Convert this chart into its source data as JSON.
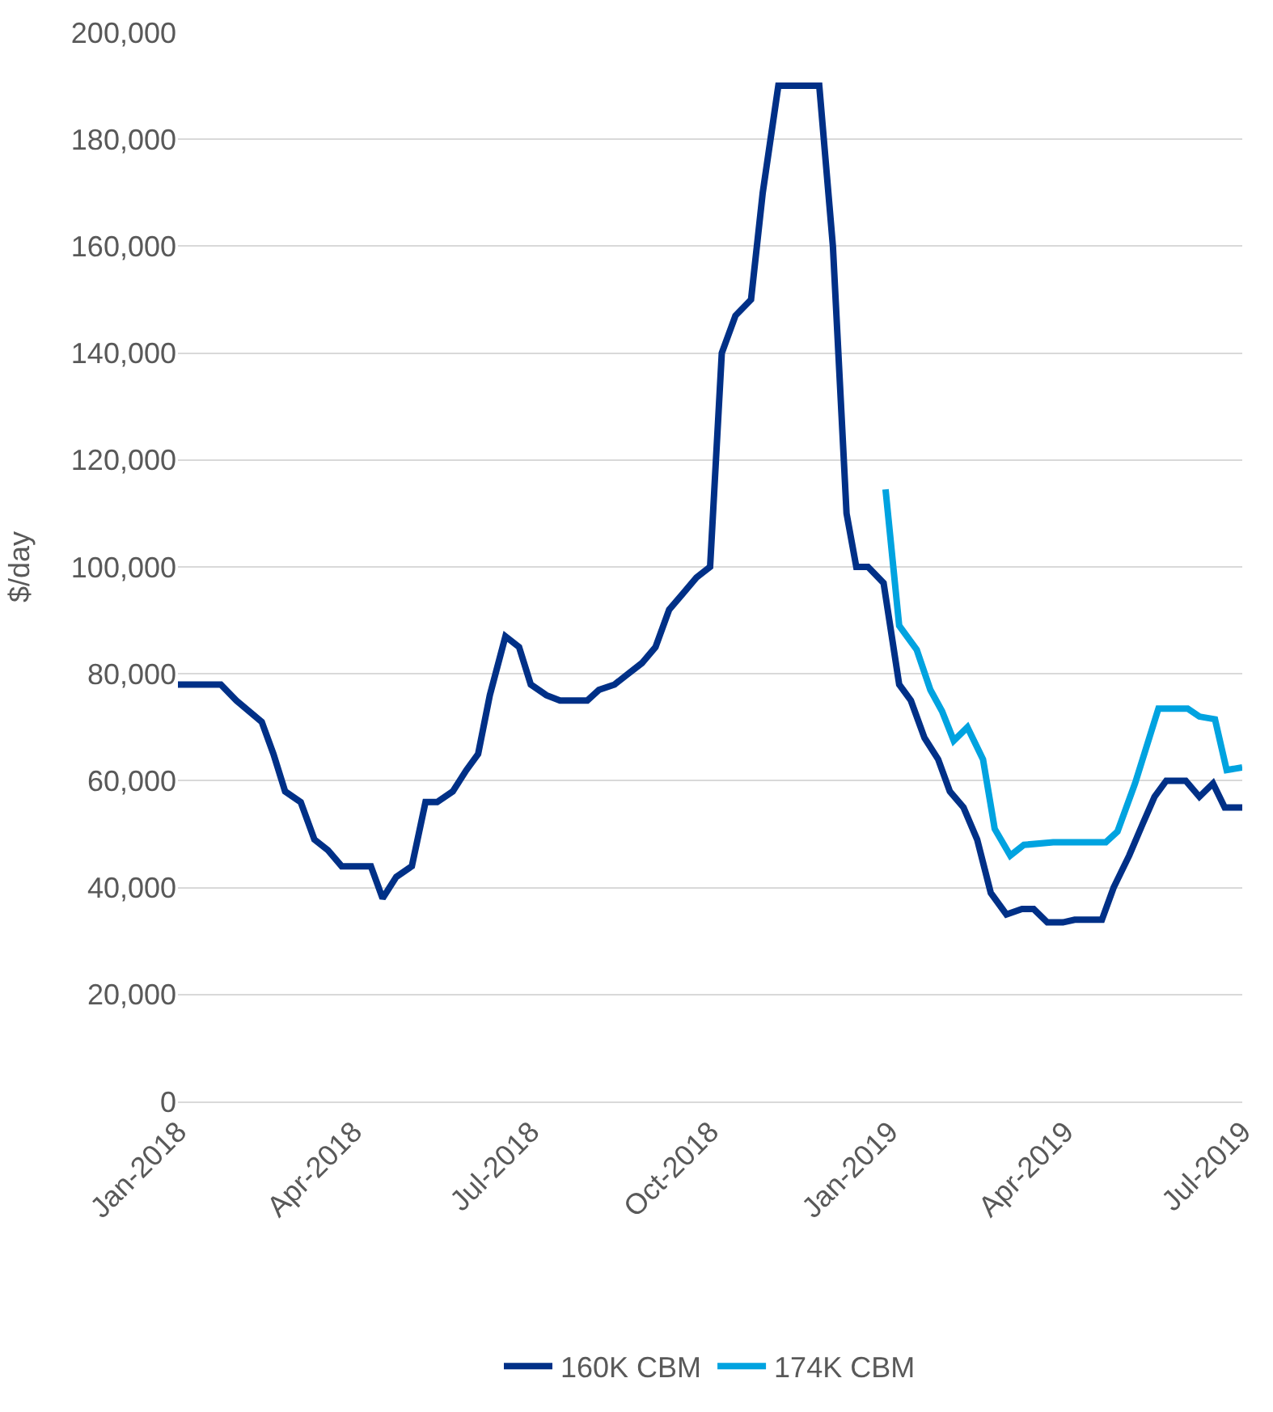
{
  "chart_data": {
    "type": "line",
    "ylabel": "$/day",
    "legend": "bottom",
    "grid": "y",
    "line_style": "solid",
    "marker": "none",
    "xlim": [
      "2018-01-01",
      "2019-07-01"
    ],
    "xticks": [
      {
        "value": "2018-01-01",
        "label": "Jan-2018"
      },
      {
        "value": "2018-04-01",
        "label": "Apr-2018"
      },
      {
        "value": "2018-07-01",
        "label": "Jul-2018"
      },
      {
        "value": "2018-10-01",
        "label": "Oct-2018"
      },
      {
        "value": "2019-01-01",
        "label": "Jan-2019"
      },
      {
        "value": "2019-04-01",
        "label": "Apr-2019"
      },
      {
        "value": "2019-07-01",
        "label": "Jul-2019"
      }
    ],
    "ylim": [
      0,
      200000
    ],
    "yticks": [
      {
        "value": 0,
        "label": "0"
      },
      {
        "value": 20000,
        "label": "20,000"
      },
      {
        "value": 40000,
        "label": "40,000"
      },
      {
        "value": 60000,
        "label": "60,000"
      },
      {
        "value": 80000,
        "label": "80,000"
      },
      {
        "value": 100000,
        "label": "100,000"
      },
      {
        "value": 120000,
        "label": "120,000"
      },
      {
        "value": 140000,
        "label": "140,000"
      },
      {
        "value": 160000,
        "label": "160,000"
      },
      {
        "value": 180000,
        "label": "180,000"
      },
      {
        "value": 200000,
        "label": "200,000"
      }
    ],
    "series": [
      {
        "name": "160K CBM",
        "color": "#003087",
        "x": [
          "2018-01-01",
          "2018-01-23",
          "2018-01-31",
          "2018-02-13",
          "2018-02-19",
          "2018-02-25",
          "2018-03-05",
          "2018-03-12",
          "2018-03-19",
          "2018-03-26",
          "2018-04-10",
          "2018-04-16",
          "2018-04-23",
          "2018-05-01",
          "2018-05-08",
          "2018-05-14",
          "2018-05-22",
          "2018-05-29",
          "2018-06-04",
          "2018-06-10",
          "2018-06-18",
          "2018-06-25",
          "2018-07-01",
          "2018-07-09",
          "2018-07-16",
          "2018-07-30",
          "2018-08-05",
          "2018-08-13",
          "2018-08-20",
          "2018-08-27",
          "2018-09-03",
          "2018-09-10",
          "2018-09-17",
          "2018-09-24",
          "2018-10-01",
          "2018-10-07",
          "2018-10-14",
          "2018-10-22",
          "2018-10-28",
          "2018-11-05",
          "2018-11-26",
          "2018-12-03",
          "2018-12-10",
          "2018-12-15",
          "2018-12-21",
          "2018-12-29",
          "2019-01-06",
          "2019-01-12",
          "2019-01-19",
          "2019-01-26",
          "2019-02-01",
          "2019-02-08",
          "2019-02-15",
          "2019-02-22",
          "2019-03-02",
          "2019-03-10",
          "2019-03-16",
          "2019-03-23",
          "2019-03-31",
          "2019-04-06",
          "2019-04-20",
          "2019-04-26",
          "2019-05-04",
          "2019-05-11",
          "2019-05-17",
          "2019-05-23",
          "2019-06-02",
          "2019-06-09",
          "2019-06-16",
          "2019-06-22",
          "2019-07-01"
        ],
        "values": [
          78000,
          78000,
          75000,
          71000,
          65000,
          58000,
          56000,
          49000,
          47000,
          44000,
          44000,
          38000,
          42000,
          44000,
          56000,
          56000,
          58000,
          62000,
          65000,
          76000,
          87000,
          85000,
          78000,
          76000,
          75000,
          75000,
          77000,
          78000,
          80000,
          82000,
          85000,
          92000,
          95000,
          98000,
          100000,
          140000,
          147000,
          150000,
          170000,
          190000,
          190000,
          160000,
          110000,
          100000,
          100000,
          97000,
          78000,
          75000,
          68000,
          64000,
          58000,
          55000,
          49000,
          39000,
          35000,
          36000,
          36000,
          33500,
          33500,
          34000,
          34000,
          40000,
          46000,
          52000,
          57000,
          60000,
          60000,
          57000,
          59500,
          55000,
          55000
        ]
      },
      {
        "name": "174K CBM",
        "color": "#00a3e0",
        "x": [
          "2018-12-30",
          "2019-01-06",
          "2019-01-15",
          "2019-01-22",
          "2019-01-28",
          "2019-02-03",
          "2019-02-10",
          "2019-02-18",
          "2019-02-24",
          "2019-03-04",
          "2019-03-11",
          "2019-03-26",
          "2019-04-22",
          "2019-04-28",
          "2019-05-07",
          "2019-05-19",
          "2019-06-03",
          "2019-06-09",
          "2019-06-17",
          "2019-06-23",
          "2019-07-01"
        ],
        "values": [
          114500,
          89000,
          84500,
          77000,
          73000,
          67500,
          70000,
          64000,
          51000,
          46000,
          48000,
          48500,
          48500,
          50500,
          59500,
          73500,
          73500,
          72000,
          71500,
          62000,
          62500
        ]
      }
    ]
  }
}
